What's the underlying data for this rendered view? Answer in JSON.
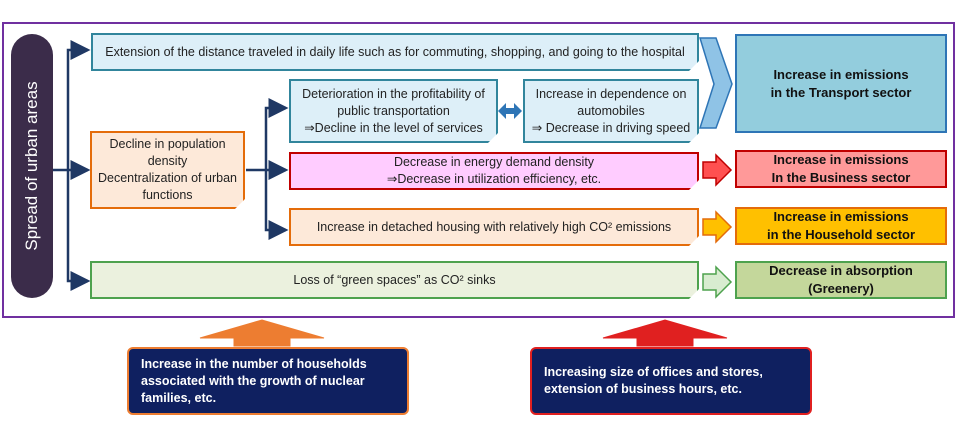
{
  "spread_label": "Spread of urban areas",
  "boxes": {
    "distance": "Extension of the distance traveled in daily life such as for commuting, shopping, and going to the hospital",
    "population": [
      "Decline in population density",
      "Decentralization of urban functions"
    ],
    "public_transport": [
      "Deterioration in the profitability of public transportation",
      "⇒Decline in the level of services"
    ],
    "automobile": [
      "Increase in dependence on automobiles",
      "⇒ Decrease in driving speed"
    ],
    "energy_density": [
      "Decrease in energy demand density",
      "⇒Decrease in utilization efficiency, etc."
    ],
    "detached_housing": "Increase in detached housing with relatively high CO² emissions",
    "green_spaces": "Loss of “green spaces” as CO² sinks"
  },
  "results": {
    "transport": [
      "Increase in emissions",
      "in the Transport sector"
    ],
    "business": [
      "Increase in emissions",
      "In the Business sector"
    ],
    "household": [
      "Increase in emissions",
      "in the Household sector"
    ],
    "absorption": [
      "Decrease in absorption",
      "(Greenery)"
    ]
  },
  "notes": {
    "households": "Increase in the number of households associated with the growth of nuclear families, etc.",
    "offices": "Increasing size of offices and stores, extension of business hours, etc."
  },
  "colors": {
    "frame": "#7030a0",
    "navy": "#0f2060",
    "transport_fill": "#93cddd",
    "business_fill": "#ff9999",
    "household_fill": "#ffc000",
    "greenery_fill": "#c4d79b"
  }
}
